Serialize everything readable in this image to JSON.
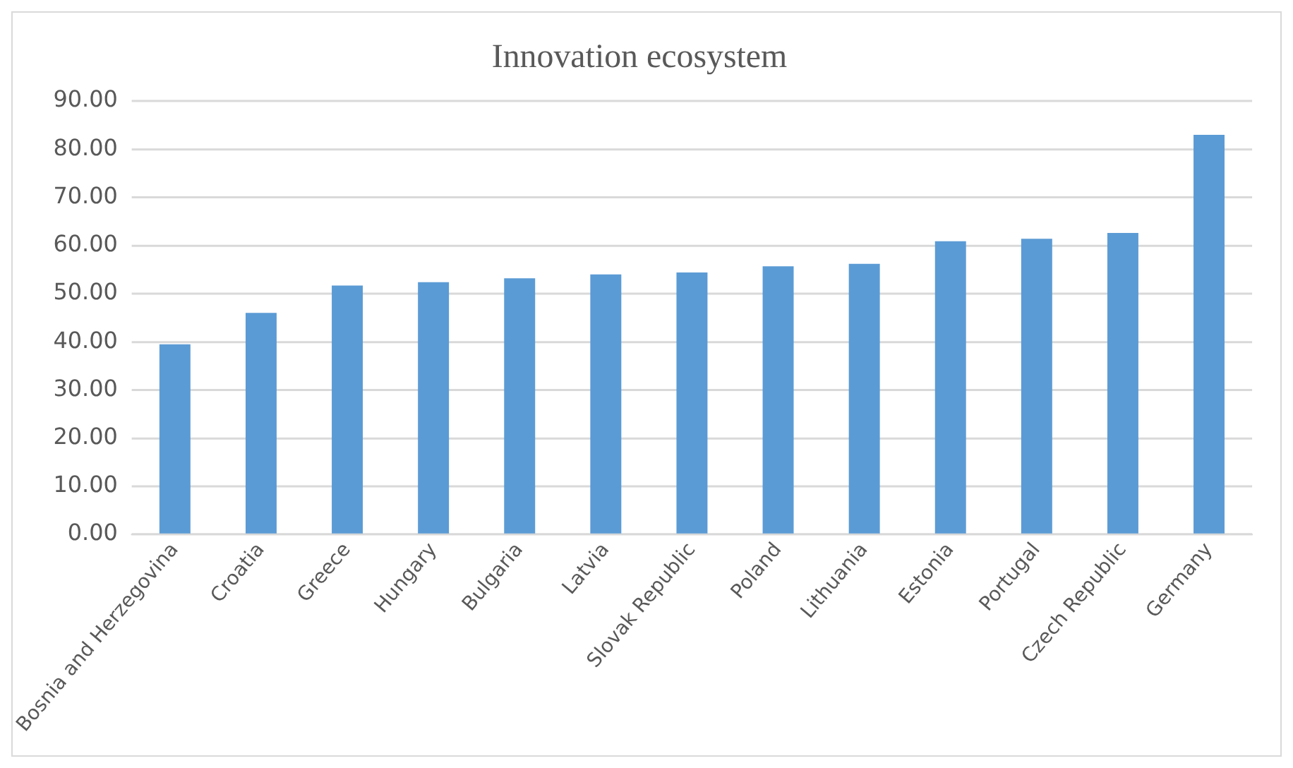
{
  "chart_data": {
    "type": "bar",
    "title": "Innovation ecosystem",
    "categories": [
      "Bosnia and Herzegovina",
      "Croatia",
      "Greece",
      "Hungary",
      "Bulgaria",
      "Latvia",
      "Slovak Republic",
      "Poland",
      "Lithuania",
      "Estonia",
      "Portugal",
      "Czech Republic",
      "Germany"
    ],
    "values": [
      39.5,
      46.0,
      51.7,
      52.4,
      53.2,
      54.0,
      54.4,
      55.7,
      56.2,
      60.9,
      61.4,
      62.6,
      83.0
    ],
    "color": "#5b9bd5",
    "ylim": [
      0,
      90
    ],
    "yticks": [
      {
        "value": 0,
        "label": "0.00"
      },
      {
        "value": 10,
        "label": "10.00"
      },
      {
        "value": 20,
        "label": "20.00"
      },
      {
        "value": 30,
        "label": "30.00"
      },
      {
        "value": 40,
        "label": "40.00"
      },
      {
        "value": 50,
        "label": "50.00"
      },
      {
        "value": 60,
        "label": "60.00"
      },
      {
        "value": 70,
        "label": "70.00"
      },
      {
        "value": 80,
        "label": "80.00"
      },
      {
        "value": 90,
        "label": "90.00"
      }
    ],
    "grid": "y"
  }
}
